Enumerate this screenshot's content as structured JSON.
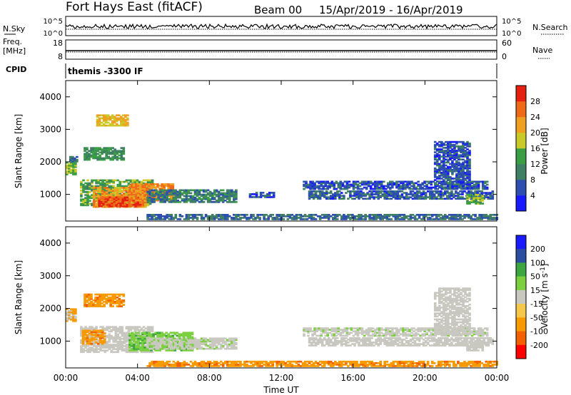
{
  "header": {
    "station": "Fort Hays East (fitACF)",
    "beam": "Beam 00",
    "dates": "15/Apr/2019 - 16/Apr/2019"
  },
  "top_panels": {
    "nsky_label": "N.Sky",
    "nsky_ticks": [
      "10^5",
      "10^0"
    ],
    "nsearch_label": "N.Search",
    "nsearch_ticks": [
      "10^5",
      "10^0"
    ],
    "freq_label_line1": "Freq.",
    "freq_label_line2": "[MHz]",
    "freq_ticks": [
      "18",
      "8"
    ],
    "nave_label": "Nave",
    "nave_ticks": [
      "60",
      "0"
    ],
    "cpid_label": "CPID",
    "cpid_text": "themis -3300 IF"
  },
  "colors": {
    "power_scale": [
      "#1a1aff",
      "#2d4fb0",
      "#3f7f63",
      "#3a9e44",
      "#c9c928",
      "#f0a020",
      "#ee6a18",
      "#e52010"
    ],
    "velocity_scale": [
      "#ff0000",
      "#f26000",
      "#f79a00",
      "#f5c84a",
      "#c8c8c0",
      "#c8c8c0",
      "#7cd040",
      "#3ca640",
      "#3c8f6e",
      "#2c4ea0",
      "#1a1aff"
    ]
  },
  "chart_data": [
    {
      "type": "heatmap",
      "name": "power",
      "x_range_hours": [
        0,
        24
      ],
      "x_ticks": [
        "00:00",
        "04:00",
        "08:00",
        "12:00",
        "16:00",
        "20:00",
        "00:00"
      ],
      "ylabel": "Slant Range [km]",
      "ylim": [
        180,
        4500
      ],
      "y_ticks": [
        1000,
        2000,
        3000,
        4000
      ],
      "colorbar_label": "Power [dB]",
      "colorbar_ticks": [
        "4",
        "8",
        "12",
        "16",
        "20",
        "24",
        "28"
      ],
      "regions": [
        {
          "t": [
            0.0,
            0.6
          ],
          "r": [
            1600,
            2000
          ],
          "value": 16
        },
        {
          "t": [
            0.2,
            0.6
          ],
          "r": [
            2000,
            2150
          ],
          "value": 8
        },
        {
          "t": [
            1.0,
            3.2
          ],
          "r": [
            2050,
            2450
          ],
          "value": 12
        },
        {
          "t": [
            1.7,
            3.4
          ],
          "r": [
            3100,
            3450
          ],
          "value": 20
        },
        {
          "t": [
            0.8,
            4.8
          ],
          "r": [
            650,
            1450
          ],
          "value": 14
        },
        {
          "t": [
            1.5,
            4.5
          ],
          "r": [
            600,
            1200
          ],
          "value": 22
        },
        {
          "t": [
            1.8,
            4.2
          ],
          "r": [
            620,
            900
          ],
          "value": 28
        },
        {
          "t": [
            3.5,
            6.0
          ],
          "r": [
            800,
            1300
          ],
          "value": 24
        },
        {
          "t": [
            4.5,
            9.5
          ],
          "r": [
            750,
            1150
          ],
          "value": 10
        },
        {
          "t": [
            10.2,
            11.6
          ],
          "r": [
            900,
            1050
          ],
          "value": 6
        },
        {
          "t": [
            4.5,
            24.0
          ],
          "r": [
            220,
            380
          ],
          "value": 8
        },
        {
          "t": [
            13.2,
            23.5
          ],
          "r": [
            1150,
            1400
          ],
          "value": 6
        },
        {
          "t": [
            13.5,
            23.8
          ],
          "r": [
            850,
            1100
          ],
          "value": 7
        },
        {
          "t": [
            20.5,
            22.5
          ],
          "r": [
            1200,
            2600
          ],
          "value": 6
        },
        {
          "t": [
            22.3,
            23.2
          ],
          "r": [
            700,
            1000
          ],
          "value": 14
        }
      ]
    },
    {
      "type": "heatmap",
      "name": "velocity",
      "x_range_hours": [
        0,
        24
      ],
      "x_ticks": [
        "00:00",
        "04:00",
        "08:00",
        "12:00",
        "16:00",
        "20:00",
        "00:00"
      ],
      "xlabel": "Time UT",
      "ylabel": "Slant Range [km]",
      "ylim": [
        180,
        4500
      ],
      "y_ticks": [
        1000,
        2000,
        3000,
        4000
      ],
      "colorbar_label": "Velocity [m s^-1]",
      "colorbar_ticks": [
        "200",
        "100",
        "50",
        "15",
        "-15",
        "-50",
        "-100",
        "-200"
      ],
      "regions": [
        {
          "t": [
            0.0,
            0.6
          ],
          "r": [
            1600,
            2000
          ],
          "value": -20
        },
        {
          "t": [
            1.0,
            3.2
          ],
          "r": [
            2050,
            2450
          ],
          "value": -40
        },
        {
          "t": [
            0.8,
            4.8
          ],
          "r": [
            650,
            1450
          ],
          "value": 0
        },
        {
          "t": [
            0.9,
            2.2
          ],
          "r": [
            900,
            1350
          ],
          "value": -40
        },
        {
          "t": [
            3.5,
            7.0
          ],
          "r": [
            700,
            1250
          ],
          "value": 40
        },
        {
          "t": [
            4.5,
            9.5
          ],
          "r": [
            750,
            1100
          ],
          "value": 5
        },
        {
          "t": [
            4.5,
            24.0
          ],
          "r": [
            220,
            380
          ],
          "value": -40
        },
        {
          "t": [
            13.2,
            23.5
          ],
          "r": [
            1150,
            1400
          ],
          "value": 5
        },
        {
          "t": [
            13.5,
            23.8
          ],
          "r": [
            850,
            1100
          ],
          "value": 0
        },
        {
          "t": [
            20.5,
            22.5
          ],
          "r": [
            1200,
            2600
          ],
          "value": 0
        },
        {
          "t": [
            22.3,
            23.2
          ],
          "r": [
            700,
            1000
          ],
          "value": 0
        }
      ]
    }
  ]
}
